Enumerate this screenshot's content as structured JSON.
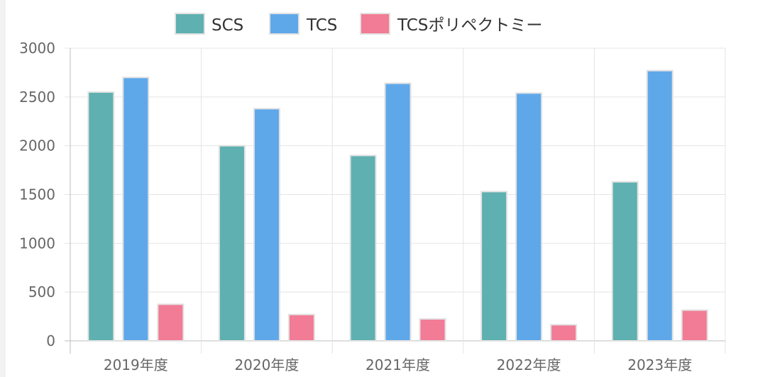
{
  "chart_data": {
    "type": "bar",
    "categories": [
      "2019年度",
      "2020年度",
      "2021年度",
      "2022年度",
      "2023年度"
    ],
    "series": [
      {
        "name": "SCS",
        "values": [
          2550,
          2000,
          1900,
          1530,
          1630
        ],
        "color": "#5fb0b0"
      },
      {
        "name": "TCS",
        "values": [
          2700,
          2380,
          2640,
          2540,
          2770
        ],
        "color": "#5ea8ea"
      },
      {
        "name": "TCSポリペクトミー",
        "values": [
          375,
          270,
          225,
          165,
          315
        ],
        "color": "#f27b95"
      }
    ],
    "ylim": [
      0,
      3000
    ],
    "yticks": [
      "0",
      "500",
      "1000",
      "1500",
      "2000",
      "2500",
      "3000"
    ],
    "grid": true,
    "legend": "top-center"
  }
}
